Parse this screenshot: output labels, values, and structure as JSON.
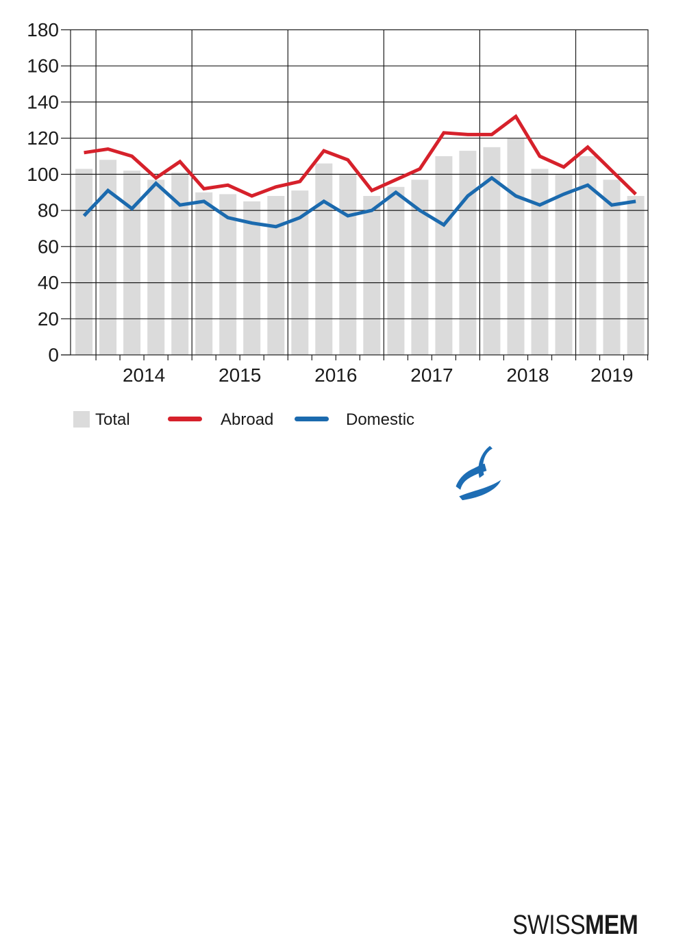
{
  "chart_data": {
    "type": "bar",
    "categories": [
      "2013Q4",
      "2014Q1",
      "2014Q2",
      "2014Q3",
      "2014Q4",
      "2015Q1",
      "2015Q2",
      "2015Q3",
      "2015Q4",
      "2016Q1",
      "2016Q2",
      "2016Q3",
      "2016Q4",
      "2017Q1",
      "2017Q2",
      "2017Q3",
      "2017Q4",
      "2018Q1",
      "2018Q2",
      "2018Q3",
      "2018Q4",
      "2019Q1",
      "2019Q2",
      "2019Q3"
    ],
    "series": [
      {
        "name": "Total",
        "type": "bar",
        "color": "#dbdbdb",
        "values": [
          103,
          108,
          102,
          97,
          101,
          90,
          89,
          85,
          88,
          91,
          106,
          100,
          88,
          93,
          97,
          110,
          113,
          115,
          120,
          103,
          100,
          110,
          97,
          88
        ]
      },
      {
        "name": "Abroad",
        "type": "line",
        "color": "#d6212b",
        "values": [
          112,
          114,
          110,
          98,
          107,
          92,
          94,
          88,
          93,
          96,
          113,
          108,
          91,
          97,
          103,
          123,
          122,
          122,
          132,
          110,
          104,
          115,
          102,
          89
        ]
      },
      {
        "name": "Domestic",
        "type": "line",
        "color": "#1b6aae",
        "values": [
          77,
          91,
          81,
          95,
          83,
          85,
          76,
          73,
          71,
          76,
          85,
          77,
          80,
          90,
          80,
          72,
          88,
          98,
          88,
          83,
          89,
          94,
          83,
          85
        ]
      }
    ],
    "x_year_labels": [
      "2014",
      "2015",
      "2016",
      "2017",
      "2018",
      "2019"
    ],
    "y_ticks": [
      0,
      20,
      40,
      60,
      80,
      100,
      120,
      140,
      160,
      180
    ],
    "ylim": [
      0,
      180
    ],
    "grid": true,
    "legend_position": "bottom"
  },
  "legend": {
    "items": [
      {
        "label": "Total",
        "swatch": "gray-box"
      },
      {
        "label": "Abroad",
        "swatch": "red-line"
      },
      {
        "label": "Domestic",
        "swatch": "blue-line"
      }
    ]
  },
  "logo": {
    "text_regular": "SWISS",
    "text_bold": "MEM",
    "mark_color": "#1d6db4",
    "text_color": "#1a1a1a"
  },
  "colors": {
    "bar": "#dbdbdb",
    "abroad": "#d6212b",
    "domestic": "#1b6aae",
    "grid": "#1a1a1a"
  }
}
